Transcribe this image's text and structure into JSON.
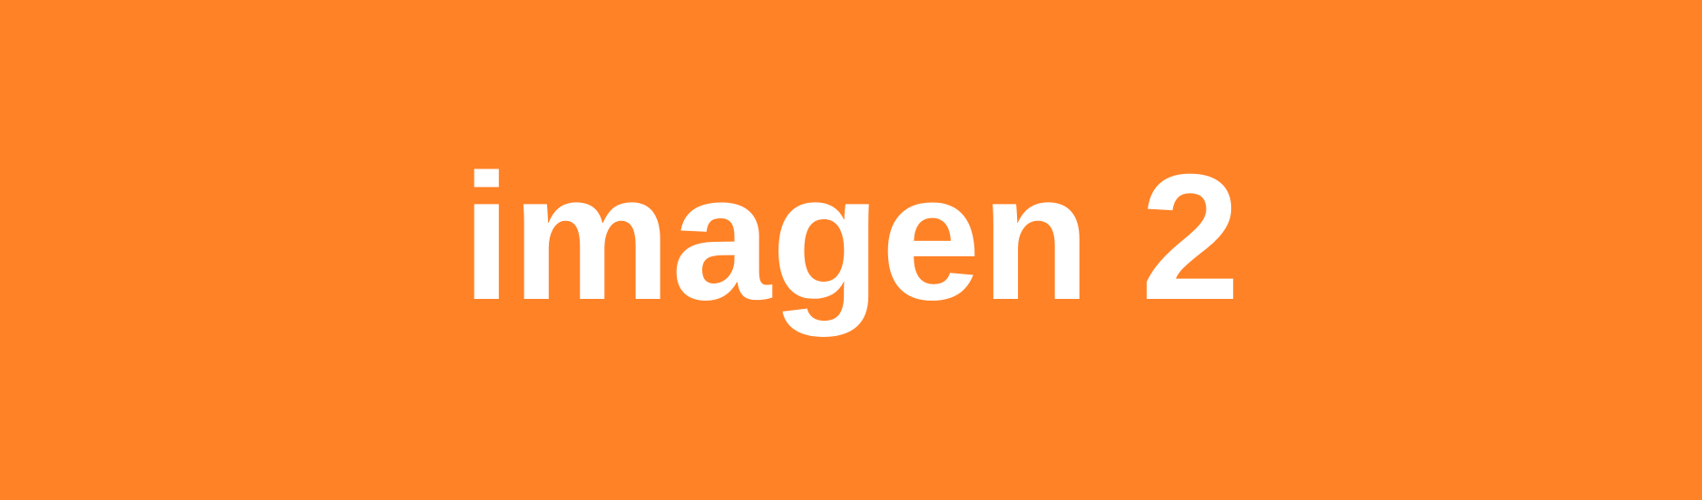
{
  "banner": {
    "text": "imagen 2",
    "background_color": "#FF8227",
    "text_color": "#FFFFFF"
  }
}
